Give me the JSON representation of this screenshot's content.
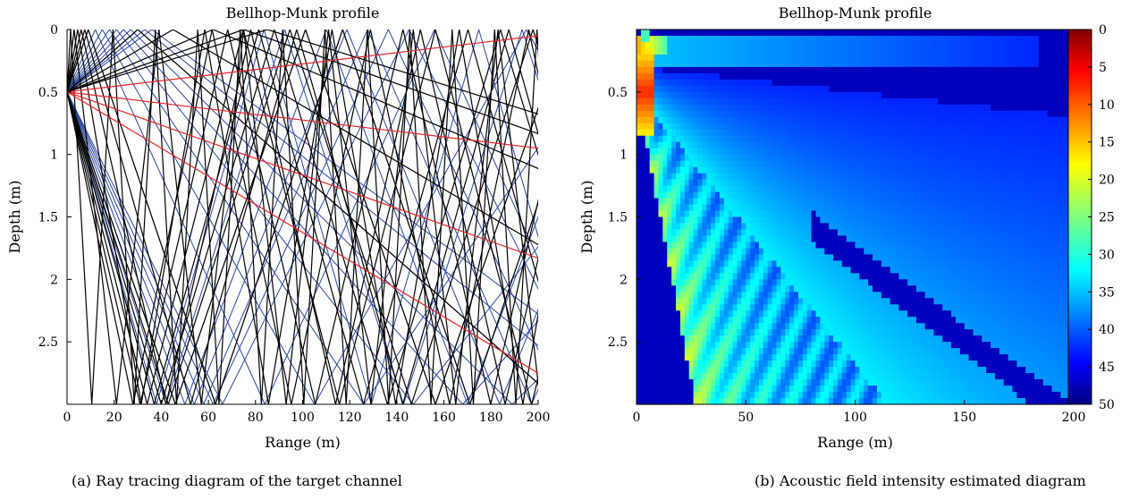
{
  "chart_data": [
    {
      "type": "line",
      "title": "Bellhop-Munk profile",
      "xlabel": "Range (m)",
      "ylabel": "Depth (m)",
      "xlim": [
        0,
        200
      ],
      "ylim": [
        0,
        3
      ],
      "y_reversed": true,
      "xticks": [
        "0",
        "20",
        "40",
        "60",
        "80",
        "100",
        "120",
        "140",
        "160",
        "180",
        "200"
      ],
      "yticks": [
        "0",
        "0.5",
        "1",
        "1.5",
        "2",
        "2.5"
      ],
      "grid": false,
      "source": {
        "range": 0,
        "depth": 0.5
      },
      "ray_colors": {
        "black": "#000000",
        "blue": "#2b45a0",
        "red": "#e8232a"
      },
      "series": [
        {
          "color": "red",
          "description": "direct rays",
          "end_depths": [
            0.05,
            0.95,
            1.83,
            2.75
          ]
        },
        {
          "color": "black",
          "description": "surface and bottom reflected rays",
          "surface_hit_ranges": [
            1.5,
            3,
            4.5,
            6,
            7.5,
            9,
            30,
            45,
            62,
            75,
            85
          ],
          "bottom_hit_ranges": [
            28,
            31,
            34,
            37,
            40,
            43,
            46
          ]
        },
        {
          "color": "blue",
          "description": "bottom reflected rays",
          "surface_hit_ranges": [
            9,
            12,
            15,
            18,
            21,
            24,
            27,
            30,
            33,
            36
          ],
          "bottom_hit_ranges": [
            38,
            42,
            46,
            50,
            54,
            58,
            62,
            66
          ]
        }
      ],
      "caption": "(a)  Ray tracing diagram of the target channel"
    },
    {
      "type": "heatmap",
      "title": "Bellhop-Munk profile",
      "xlabel": "Range (m)",
      "ylabel": "Depth (m)",
      "xlim": [
        0,
        200
      ],
      "ylim": [
        0,
        3
      ],
      "y_reversed": true,
      "xticks": [
        "0",
        "50",
        "100",
        "150",
        "200"
      ],
      "yticks": [
        "0.5",
        "1",
        "1.5",
        "2",
        "2.5"
      ],
      "colorbar": {
        "min": 0,
        "max": 50,
        "ticks": [
          "0",
          "5",
          "10",
          "15",
          "20",
          "25",
          "30",
          "35",
          "40",
          "45",
          "50"
        ],
        "colormap": "jet"
      },
      "colorbar_reversed": true,
      "background_value": 47,
      "features": {
        "source": {
          "range": 0,
          "depth": 0.5,
          "value": 8
        },
        "surface_beam": {
          "range_end": 185,
          "depth": 0.15,
          "value": 38
        },
        "main_beam": {
          "range_end_top": 150,
          "range_end_bottom": 55,
          "value": 30
        },
        "shadow_band": {
          "range_end": 190,
          "value": 48
        }
      },
      "caption": "(b)  Acoustic field intensity estimated diagram"
    }
  ]
}
